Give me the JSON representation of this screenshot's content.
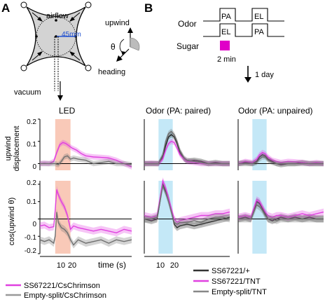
{
  "panels": {
    "a": "A",
    "b": "B"
  },
  "arena": {
    "airflow": "airflow",
    "diameter": "45mm",
    "vacuum": "vacuum",
    "upwind": "upwind",
    "theta": "θ",
    "heading": "heading"
  },
  "protocol": {
    "odor_label": "Odor",
    "sugar_label": "Sugar",
    "top_pulses": [
      "PA",
      "EL"
    ],
    "bottom_pulses": [
      "EL",
      "PA"
    ],
    "duration": "2 min",
    "delay": "1 day",
    "colors": {
      "sugar": "#e000c8"
    }
  },
  "titles": {
    "led": "LED",
    "paired": "Odor (PA: paired)",
    "unpaired": "Odor (PA: unpaired)"
  },
  "axes": {
    "ylabel_top": [
      "upwind",
      "displacement"
    ],
    "ylabel_bottom": "cos(upwind θ)",
    "xlabel": "time (s)",
    "xticks": [
      "10",
      "20"
    ],
    "yticks_top": [
      "0.2",
      "0.1",
      "0"
    ],
    "yticks_bottom": [
      "0.2",
      "0.1",
      "0",
      "-0.1",
      "-0.2"
    ]
  },
  "legends": {
    "left": [
      "SS67221/CsChrimson",
      "Empty-split/CsChrimson"
    ],
    "right": [
      "SS67221/+",
      "SS67221/TNT",
      "Empty-split/TNT"
    ]
  },
  "colors": {
    "magenta": "#e040e0",
    "gray": "#707070",
    "black": "#222222",
    "led_shade": "#f9c9b8",
    "odor_shade": "#c4e8f7"
  },
  "chart_data": [
    {
      "type": "line",
      "panel": "A-top",
      "ylim": [
        -0.03,
        0.2
      ],
      "xlim": [
        0,
        60
      ],
      "shade": [
        10,
        20
      ],
      "series": [
        {
          "name": "SS67221/CsChrimson",
          "color": "magenta",
          "x": [
            0,
            3,
            6,
            9,
            11,
            13,
            15,
            17,
            19,
            21,
            24,
            27,
            30,
            35,
            40,
            45,
            50,
            55,
            60
          ],
          "y": [
            0.0,
            0.002,
            0.0,
            0.01,
            0.05,
            0.085,
            0.095,
            0.09,
            0.08,
            0.07,
            0.06,
            0.045,
            0.035,
            0.03,
            0.028,
            0.025,
            0.015,
            0.0,
            -0.015
          ]
        },
        {
          "name": "Empty-split/CsChrimson",
          "color": "gray",
          "x": [
            0,
            5,
            10,
            12,
            14,
            16,
            18,
            20,
            22,
            25,
            30,
            35,
            40,
            45,
            50,
            55,
            60
          ],
          "y": [
            0.0,
            0.0,
            0.0,
            -0.005,
            0.01,
            0.03,
            0.035,
            0.02,
            0.025,
            0.02,
            0.015,
            0.0,
            0.005,
            0.01,
            0.0,
            0.0,
            -0.005
          ]
        }
      ]
    },
    {
      "type": "line",
      "panel": "A-bottom",
      "ylim": [
        -0.2,
        0.22
      ],
      "xlim": [
        0,
        60
      ],
      "shade": [
        10,
        20
      ],
      "series": [
        {
          "name": "SS67221/CsChrimson",
          "color": "magenta",
          "x": [
            0,
            3,
            6,
            9,
            10,
            11,
            12,
            14,
            16,
            18,
            20,
            21,
            22,
            25,
            30,
            35,
            40,
            45,
            50,
            55,
            60
          ],
          "y": [
            -0.04,
            -0.035,
            -0.05,
            -0.045,
            0.05,
            0.17,
            0.14,
            0.1,
            0.07,
            0.02,
            -0.06,
            -0.05,
            -0.04,
            -0.05,
            -0.06,
            -0.07,
            -0.06,
            -0.07,
            -0.08,
            -0.06,
            -0.07
          ]
        },
        {
          "name": "Empty-split/CsChrimson",
          "color": "gray",
          "x": [
            0,
            3,
            6,
            9,
            10,
            11,
            12,
            14,
            16,
            18,
            20,
            22,
            25,
            30,
            35,
            40,
            45,
            50,
            55,
            60
          ],
          "y": [
            -0.12,
            -0.13,
            -0.12,
            -0.14,
            -0.1,
            0.04,
            -0.02,
            -0.05,
            -0.06,
            -0.08,
            -0.12,
            -0.15,
            -0.12,
            -0.14,
            -0.13,
            -0.12,
            -0.14,
            -0.12,
            -0.13,
            -0.12
          ]
        }
      ]
    },
    {
      "type": "line",
      "panel": "B-paired-top",
      "ylim": [
        -0.03,
        0.2
      ],
      "xlim": [
        0,
        60
      ],
      "shade": [
        10,
        20
      ],
      "series": [
        {
          "name": "SS67221/+",
          "color": "black",
          "x": [
            0,
            5,
            10,
            13,
            15,
            17,
            19,
            21,
            23,
            25,
            28,
            30,
            35,
            40,
            45,
            50,
            55,
            60
          ],
          "y": [
            0.0,
            0.0,
            0.0,
            0.03,
            0.08,
            0.12,
            0.13,
            0.12,
            0.09,
            0.05,
            0.02,
            0.01,
            0.015,
            0.01,
            0.0,
            0.005,
            0.0,
            0.0
          ]
        },
        {
          "name": "SS67221/TNT",
          "color": "magenta",
          "x": [
            0,
            5,
            10,
            13,
            15,
            17,
            19,
            21,
            23,
            25,
            28,
            30,
            35,
            40,
            45,
            50,
            55,
            60
          ],
          "y": [
            0.0,
            0.002,
            0.0,
            0.02,
            0.06,
            0.09,
            0.1,
            0.095,
            0.07,
            0.04,
            0.02,
            0.01,
            0.005,
            0.0,
            0.0,
            0.0,
            0.0,
            0.0
          ]
        },
        {
          "name": "Empty-split/TNT",
          "color": "gray",
          "x": [
            0,
            5,
            10,
            13,
            15,
            17,
            19,
            21,
            23,
            25,
            28,
            30,
            35,
            40,
            45,
            50,
            55,
            60
          ],
          "y": [
            0.0,
            0.0,
            0.0,
            0.04,
            0.1,
            0.135,
            0.145,
            0.13,
            0.1,
            0.06,
            0.025,
            0.015,
            0.01,
            0.005,
            0.0,
            0.0,
            0.0,
            0.0
          ]
        }
      ]
    },
    {
      "type": "line",
      "panel": "B-unpaired-top",
      "ylim": [
        -0.03,
        0.2
      ],
      "xlim": [
        0,
        60
      ],
      "shade": [
        10,
        20
      ],
      "series": [
        {
          "name": "SS67221/+",
          "color": "black",
          "x": [
            0,
            5,
            10,
            13,
            15,
            17,
            19,
            21,
            24,
            27,
            30,
            35,
            40,
            45,
            50,
            55,
            60
          ],
          "y": [
            0.0,
            0.005,
            0.0,
            0.01,
            0.03,
            0.04,
            0.035,
            0.02,
            0.01,
            0.0,
            -0.005,
            0.0,
            0.0,
            0.005,
            0.0,
            0.0,
            0.0
          ]
        },
        {
          "name": "SS67221/TNT",
          "color": "magenta",
          "x": [
            0,
            5,
            10,
            13,
            15,
            17,
            19,
            21,
            24,
            27,
            30,
            35,
            40,
            45,
            50,
            55,
            60
          ],
          "y": [
            0.0,
            0.01,
            0.005,
            0.02,
            0.04,
            0.05,
            0.045,
            0.03,
            0.015,
            0.01,
            0.005,
            0.01,
            0.008,
            0.005,
            0.0,
            0.005,
            0.0
          ]
        },
        {
          "name": "Empty-split/TNT",
          "color": "gray",
          "x": [
            0,
            5,
            10,
            13,
            15,
            17,
            19,
            21,
            24,
            27,
            30,
            35,
            40,
            45,
            50,
            55,
            60
          ],
          "y": [
            0.0,
            0.0,
            0.0,
            0.005,
            0.02,
            0.03,
            0.03,
            0.015,
            0.005,
            0.0,
            0.0,
            0.0,
            0.0,
            0.0,
            0.0,
            0.0,
            0.0
          ]
        }
      ]
    },
    {
      "type": "line",
      "panel": "B-paired-bottom",
      "ylim": [
        -0.2,
        0.22
      ],
      "xlim": [
        0,
        60
      ],
      "shade": [
        10,
        20
      ],
      "series": [
        {
          "name": "SS67221/+",
          "color": "black",
          "x": [
            0,
            5,
            9,
            11,
            13,
            15,
            17,
            19,
            21,
            23,
            25,
            30,
            35,
            40,
            45,
            50,
            55,
            60
          ],
          "y": [
            0.0,
            -0.01,
            0.0,
            0.1,
            0.2,
            0.16,
            0.12,
            0.05,
            -0.03,
            -0.05,
            -0.04,
            -0.03,
            -0.04,
            -0.03,
            -0.02,
            -0.01,
            0.0,
            0.01
          ]
        },
        {
          "name": "SS67221/TNT",
          "color": "magenta",
          "x": [
            0,
            5,
            9,
            11,
            13,
            15,
            17,
            19,
            21,
            23,
            25,
            30,
            35,
            40,
            45,
            50,
            55,
            60
          ],
          "y": [
            0.02,
            0.01,
            0.02,
            0.12,
            0.22,
            0.18,
            0.12,
            0.06,
            0.0,
            -0.02,
            -0.01,
            0.0,
            0.01,
            0.02,
            0.02,
            0.03,
            0.03,
            0.04
          ]
        },
        {
          "name": "Empty-split/TNT",
          "color": "gray",
          "x": [
            0,
            5,
            9,
            11,
            13,
            15,
            17,
            19,
            21,
            23,
            25,
            30,
            35,
            40,
            45,
            50,
            55,
            60
          ],
          "y": [
            0.0,
            0.0,
            0.01,
            0.1,
            0.19,
            0.15,
            0.1,
            0.04,
            -0.02,
            -0.03,
            -0.02,
            -0.02,
            -0.01,
            -0.02,
            0.0,
            0.01,
            0.01,
            0.0
          ]
        }
      ]
    },
    {
      "type": "line",
      "panel": "B-unpaired-bottom",
      "ylim": [
        -0.2,
        0.22
      ],
      "xlim": [
        0,
        60
      ],
      "shade": [
        10,
        20
      ],
      "series": [
        {
          "name": "SS67221/+",
          "color": "black",
          "x": [
            0,
            5,
            9,
            11,
            13,
            15,
            17,
            19,
            21,
            24,
            27,
            30,
            35,
            40,
            45,
            50,
            55,
            60
          ],
          "y": [
            0.0,
            0.01,
            0.0,
            0.05,
            0.1,
            0.09,
            0.06,
            0.03,
            0.0,
            -0.01,
            0.0,
            0.01,
            0.0,
            0.01,
            0.0,
            0.01,
            0.0,
            0.0
          ]
        },
        {
          "name": "SS67221/TNT",
          "color": "magenta",
          "x": [
            0,
            5,
            9,
            11,
            13,
            15,
            17,
            19,
            21,
            24,
            27,
            30,
            35,
            40,
            45,
            50,
            55,
            60
          ],
          "y": [
            0.01,
            0.02,
            0.01,
            0.06,
            0.11,
            0.1,
            0.07,
            0.04,
            0.02,
            0.01,
            0.02,
            0.02,
            0.01,
            0.02,
            0.03,
            0.02,
            0.03,
            0.04
          ]
        },
        {
          "name": "Empty-split/TNT",
          "color": "gray",
          "x": [
            0,
            5,
            9,
            11,
            13,
            15,
            17,
            19,
            21,
            24,
            27,
            30,
            35,
            40,
            45,
            50,
            55,
            60
          ],
          "y": [
            0.0,
            0.0,
            0.0,
            0.04,
            0.08,
            0.07,
            0.05,
            0.02,
            0.0,
            0.0,
            -0.01,
            0.0,
            0.0,
            0.0,
            0.0,
            0.0,
            0.0,
            0.0
          ]
        }
      ]
    }
  ]
}
